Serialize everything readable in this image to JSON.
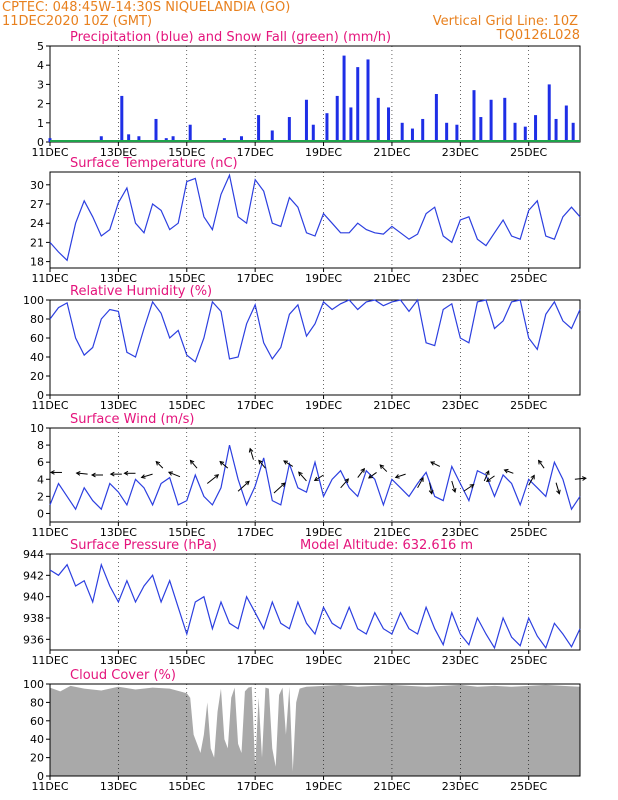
{
  "header": {
    "line1_left": "CPTEC:   048:45W-14:30S   NIQUELANDIA (GO)",
    "line2_left": "11DEC2020  10Z (GMT)",
    "line2_right": "Vertical Grid Line: 10Z",
    "line3_right": "TQ0126L028"
  },
  "x_axis": {
    "ticks": [
      "11DEC",
      "13DEC",
      "15DEC",
      "17DEC",
      "19DEC",
      "21DEC",
      "23DEC",
      "25DEC"
    ],
    "range_days": [
      0,
      15.5
    ]
  },
  "colors": {
    "series_line": "#2c3fe0",
    "precip": "#1e2ee6",
    "snow": "#1ea34a",
    "cloud": "#a9a9a9",
    "title": "#e4147c",
    "header": "#e8801e"
  },
  "chart_data": [
    {
      "id": "precip",
      "type": "bar",
      "title": "Precipitation (blue) and Snow Fall (green) (mm/h)",
      "ylim": [
        0,
        5
      ],
      "yticks": [
        "0",
        "1",
        "2",
        "3",
        "4",
        "5"
      ],
      "ytick_values": [
        0,
        1,
        2,
        3,
        4,
        5
      ],
      "series": [
        {
          "name": "Precipitation",
          "x": [
            0.0,
            0.5,
            1.5,
            2.1,
            2.3,
            2.6,
            3.1,
            3.4,
            3.6,
            4.1,
            4.6,
            5.1,
            5.6,
            6.1,
            6.5,
            7.0,
            7.5,
            7.7,
            8.1,
            8.4,
            8.6,
            8.8,
            9.0,
            9.3,
            9.6,
            9.9,
            10.3,
            10.6,
            10.9,
            11.3,
            11.6,
            11.9,
            12.4,
            12.6,
            12.9,
            13.3,
            13.6,
            13.9,
            14.2,
            14.6,
            14.8,
            15.1,
            15.3
          ],
          "values": [
            0.2,
            0.1,
            0.3,
            2.4,
            0.4,
            0.3,
            1.2,
            0.2,
            0.3,
            0.9,
            0.1,
            0.2,
            0.3,
            1.4,
            0.6,
            1.3,
            2.2,
            0.9,
            1.5,
            2.4,
            4.5,
            1.8,
            3.9,
            4.3,
            2.3,
            1.8,
            1.0,
            0.7,
            1.2,
            2.5,
            1.0,
            0.9,
            2.7,
            1.3,
            2.2,
            2.3,
            1.0,
            0.8,
            1.4,
            3.0,
            1.2,
            1.9,
            1.0
          ]
        },
        {
          "name": "Snow Fall",
          "x": [
            0,
            15.5
          ],
          "values": [
            0,
            0
          ]
        }
      ]
    },
    {
      "id": "temperature",
      "type": "line",
      "title": "Surface Temperature (nC)",
      "ylim": [
        17,
        32
      ],
      "yticks": [
        "18",
        "21",
        "24",
        "27",
        "30"
      ],
      "ytick_values": [
        18,
        21,
        24,
        27,
        30
      ],
      "x": [
        0,
        0.25,
        0.5,
        0.75,
        1,
        1.25,
        1.5,
        1.75,
        2,
        2.25,
        2.5,
        2.75,
        3,
        3.25,
        3.5,
        3.75,
        4,
        4.25,
        4.5,
        4.75,
        5,
        5.25,
        5.5,
        5.75,
        6,
        6.25,
        6.5,
        6.75,
        7,
        7.25,
        7.5,
        7.75,
        8,
        8.25,
        8.5,
        8.75,
        9,
        9.25,
        9.5,
        9.75,
        10,
        10.25,
        10.5,
        10.75,
        11,
        11.25,
        11.5,
        11.75,
        12,
        12.25,
        12.5,
        12.75,
        13,
        13.25,
        13.5,
        13.75,
        14,
        14.25,
        14.5,
        14.75,
        15,
        15.25,
        15.5
      ],
      "values": [
        21,
        19.5,
        18.2,
        24,
        27.5,
        25,
        22,
        23,
        27.2,
        29.5,
        24,
        22.5,
        27,
        26,
        23,
        24,
        30.5,
        31,
        25,
        23,
        28.5,
        31.5,
        25,
        24,
        30.8,
        29,
        24,
        23.5,
        28,
        26.5,
        22.5,
        22,
        25.5,
        24,
        22.5,
        22.5,
        24,
        23,
        22.5,
        22.3,
        23.5,
        22.5,
        21.5,
        22.3,
        25.5,
        26.5,
        22,
        21,
        24.5,
        25,
        21.5,
        20.5,
        22.5,
        24.5,
        22,
        21.5,
        26,
        27.5,
        22,
        21.5,
        25,
        26.5,
        25
      ]
    },
    {
      "id": "humidity",
      "type": "line",
      "title": "Relative Humidity (%)",
      "ylim": [
        0,
        100
      ],
      "yticks": [
        "0",
        "20",
        "40",
        "60",
        "80",
        "100"
      ],
      "ytick_values": [
        0,
        20,
        40,
        60,
        80,
        100
      ],
      "x": [
        0,
        0.25,
        0.5,
        0.75,
        1,
        1.25,
        1.5,
        1.75,
        2,
        2.25,
        2.5,
        2.75,
        3,
        3.25,
        3.5,
        3.75,
        4,
        4.25,
        4.5,
        4.75,
        5,
        5.25,
        5.5,
        5.75,
        6,
        6.25,
        6.5,
        6.75,
        7,
        7.25,
        7.5,
        7.75,
        8,
        8.25,
        8.5,
        8.75,
        9,
        9.25,
        9.5,
        9.75,
        10,
        10.25,
        10.5,
        10.75,
        11,
        11.25,
        11.5,
        11.75,
        12,
        12.25,
        12.5,
        12.75,
        13,
        13.25,
        13.5,
        13.75,
        14,
        14.25,
        14.5,
        14.75,
        15,
        15.25,
        15.5
      ],
      "values": [
        80,
        92,
        97,
        60,
        42,
        50,
        80,
        90,
        88,
        45,
        40,
        70,
        98,
        86,
        60,
        68,
        42,
        35,
        60,
        98,
        88,
        38,
        40,
        75,
        95,
        55,
        38,
        50,
        85,
        95,
        62,
        75,
        98,
        90,
        96,
        100,
        90,
        98,
        100,
        94,
        98,
        100,
        88,
        100,
        55,
        52,
        90,
        96,
        60,
        55,
        98,
        100,
        70,
        78,
        98,
        100,
        60,
        48,
        85,
        98,
        78,
        70,
        90
      ]
    },
    {
      "id": "wind",
      "type": "line",
      "title": "Surface Wind (m/s)",
      "ylim": [
        -1,
        10
      ],
      "yticks": [
        "0",
        "2",
        "4",
        "6",
        "8",
        "10"
      ],
      "ytick_values": [
        0,
        2,
        4,
        6,
        8,
        10
      ],
      "x": [
        0,
        0.25,
        0.5,
        0.75,
        1,
        1.25,
        1.5,
        1.75,
        2,
        2.25,
        2.5,
        2.75,
        3,
        3.25,
        3.5,
        3.75,
        4,
        4.25,
        4.5,
        4.75,
        5,
        5.25,
        5.5,
        5.75,
        6,
        6.25,
        6.5,
        6.75,
        7,
        7.25,
        7.5,
        7.75,
        8,
        8.25,
        8.5,
        8.75,
        9,
        9.25,
        9.5,
        9.75,
        10,
        10.25,
        10.5,
        10.75,
        11,
        11.25,
        11.5,
        11.75,
        12,
        12.25,
        12.5,
        12.75,
        13,
        13.25,
        13.5,
        13.75,
        14,
        14.25,
        14.5,
        14.75,
        15,
        15.25,
        15.5
      ],
      "values": [
        1,
        3.5,
        2,
        0.5,
        3,
        1.5,
        0.5,
        3.5,
        2.5,
        1,
        4,
        3,
        1,
        3.5,
        4.2,
        1,
        1.5,
        4.5,
        2,
        1,
        3,
        8,
        4,
        1,
        3.2,
        6.5,
        1.5,
        1,
        5.8,
        3,
        2.5,
        6,
        2,
        4,
        5,
        3,
        2,
        5,
        4,
        1,
        4,
        3,
        2,
        3.5,
        4.8,
        2,
        1.5,
        5.5,
        3.5,
        1.5,
        5,
        4.5,
        2,
        4.5,
        3.5,
        1,
        4,
        3,
        2,
        6,
        4,
        0.5,
        2
      ],
      "arrows": [
        {
          "x": 0.35,
          "y": 4.8,
          "dx": -1,
          "dy": 0
        },
        {
          "x": 1.1,
          "y": 4.6,
          "dx": -1,
          "dy": 0.1
        },
        {
          "x": 1.55,
          "y": 4.5,
          "dx": -1,
          "dy": 0
        },
        {
          "x": 2.1,
          "y": 4.6,
          "dx": -1,
          "dy": 0
        },
        {
          "x": 2.5,
          "y": 4.7,
          "dx": -1,
          "dy": 0
        },
        {
          "x": 3.0,
          "y": 4.6,
          "dx": -1,
          "dy": -0.3
        },
        {
          "x": 3.3,
          "y": 5.3,
          "dx": -0.6,
          "dy": 0.6
        },
        {
          "x": 3.8,
          "y": 4.3,
          "dx": -1,
          "dy": 0.4
        },
        {
          "x": 4.3,
          "y": 5.3,
          "dx": -0.6,
          "dy": 0.7
        },
        {
          "x": 4.6,
          "y": 3.5,
          "dx": 1,
          "dy": 0.8
        },
        {
          "x": 5.2,
          "y": 5.3,
          "dx": -0.7,
          "dy": 0.6
        },
        {
          "x": 5.5,
          "y": 2.6,
          "dx": 1,
          "dy": 0.9
        },
        {
          "x": 5.95,
          "y": 6.3,
          "dx": -0.3,
          "dy": 1
        },
        {
          "x": 6.3,
          "y": 5.3,
          "dx": -0.6,
          "dy": 0.7
        },
        {
          "x": 6.55,
          "y": 2.4,
          "dx": 1,
          "dy": 0.9
        },
        {
          "x": 7.1,
          "y": 5.5,
          "dx": -0.8,
          "dy": 0.5
        },
        {
          "x": 7.5,
          "y": 3.8,
          "dx": -0.7,
          "dy": 0.8
        },
        {
          "x": 8.0,
          "y": 4.5,
          "dx": -0.8,
          "dy": -0.5
        },
        {
          "x": 8.5,
          "y": 3.0,
          "dx": 0.7,
          "dy": 0.8
        },
        {
          "x": 9.0,
          "y": 4.2,
          "dx": 0.6,
          "dy": 0.8
        },
        {
          "x": 9.55,
          "y": 4.8,
          "dx": -0.7,
          "dy": -0.5
        },
        {
          "x": 9.85,
          "y": 4.9,
          "dx": -0.6,
          "dy": 0.6
        },
        {
          "x": 10.4,
          "y": 4.6,
          "dx": -0.9,
          "dy": -0.3
        },
        {
          "x": 10.75,
          "y": 3.0,
          "dx": 0.5,
          "dy": 0.9
        },
        {
          "x": 11.1,
          "y": 3.6,
          "dx": 0.2,
          "dy": -1
        },
        {
          "x": 11.4,
          "y": 5.5,
          "dx": -0.8,
          "dy": 0.4
        },
        {
          "x": 11.75,
          "y": 3.8,
          "dx": 0.3,
          "dy": -1
        },
        {
          "x": 12.1,
          "y": 2.6,
          "dx": 0.9,
          "dy": 0.6
        },
        {
          "x": 12.7,
          "y": 3.8,
          "dx": 0.4,
          "dy": 0.9
        },
        {
          "x": 13.0,
          "y": 4.4,
          "dx": -0.7,
          "dy": -0.5
        },
        {
          "x": 13.55,
          "y": 4.7,
          "dx": -0.8,
          "dy": 0.3
        },
        {
          "x": 14.0,
          "y": 3.3,
          "dx": 0.5,
          "dy": 0.9
        },
        {
          "x": 14.45,
          "y": 5.3,
          "dx": -0.5,
          "dy": 0.7
        },
        {
          "x": 14.8,
          "y": 3.6,
          "dx": 0.3,
          "dy": -1
        },
        {
          "x": 15.35,
          "y": 4.0,
          "dx": 1,
          "dy": 0.1
        }
      ]
    },
    {
      "id": "pressure",
      "type": "line",
      "title": "Surface Pressure (hPa)",
      "annotation": "Model Altitude: 632.616  m",
      "ylim": [
        935,
        944
      ],
      "yticks": [
        "936",
        "938",
        "940",
        "942",
        "944"
      ],
      "ytick_values": [
        936,
        938,
        940,
        942,
        944
      ],
      "x": [
        0,
        0.25,
        0.5,
        0.75,
        1,
        1.25,
        1.5,
        1.75,
        2,
        2.25,
        2.5,
        2.75,
        3,
        3.25,
        3.5,
        3.75,
        4,
        4.25,
        4.5,
        4.75,
        5,
        5.25,
        5.5,
        5.75,
        6,
        6.25,
        6.5,
        6.75,
        7,
        7.25,
        7.5,
        7.75,
        8,
        8.25,
        8.5,
        8.75,
        9,
        9.25,
        9.5,
        9.75,
        10,
        10.25,
        10.5,
        10.75,
        11,
        11.25,
        11.5,
        11.75,
        12,
        12.25,
        12.5,
        12.75,
        13,
        13.25,
        13.5,
        13.75,
        14,
        14.25,
        14.5,
        14.75,
        15,
        15.25,
        15.5
      ],
      "values": [
        942.5,
        942,
        943,
        941,
        941.5,
        939.5,
        943,
        941,
        939.5,
        941.5,
        939.5,
        941,
        942,
        939.5,
        941.5,
        939,
        936.5,
        939.5,
        940,
        937,
        939.5,
        937.5,
        937,
        940,
        938.5,
        937,
        939.5,
        937.5,
        937,
        939.5,
        937.5,
        936.5,
        939,
        937.5,
        937,
        939,
        937,
        936.5,
        938.5,
        937,
        936.5,
        938.5,
        937,
        936.5,
        939,
        937,
        935.5,
        938.5,
        936.5,
        935.5,
        938,
        936.5,
        935.2,
        938,
        936.2,
        935.4,
        938,
        936.3,
        935.2,
        937.5,
        936.5,
        935.3,
        937
      ]
    },
    {
      "id": "cloud",
      "type": "area",
      "title": "Cloud Cover (%)",
      "ylim": [
        0,
        100
      ],
      "yticks": [
        "0",
        "20",
        "40",
        "60",
        "80",
        "100"
      ],
      "ytick_values": [
        0,
        20,
        40,
        60,
        80,
        100
      ],
      "x": [
        0,
        0.3,
        0.6,
        1,
        1.5,
        2,
        2.5,
        3,
        3.5,
        3.8,
        4.0,
        4.1,
        4.2,
        4.3,
        4.4,
        4.5,
        4.6,
        4.7,
        4.8,
        4.9,
        5.0,
        5.1,
        5.2,
        5.3,
        5.4,
        5.5,
        5.6,
        5.7,
        5.8,
        5.9,
        6.0,
        6.1,
        6.2,
        6.3,
        6.4,
        6.5,
        6.6,
        6.7,
        6.8,
        6.9,
        7.0,
        7.1,
        7.2,
        7.3,
        7.4,
        7.5,
        8,
        8.5,
        9,
        9.5,
        10,
        10.5,
        11,
        11.5,
        12,
        12.5,
        13,
        13.5,
        14,
        14.5,
        15,
        15.5
      ],
      "values": [
        96,
        92,
        98,
        95,
        93,
        97,
        94,
        96,
        95,
        92,
        90,
        85,
        45,
        35,
        25,
        45,
        80,
        30,
        20,
        70,
        95,
        40,
        30,
        85,
        96,
        35,
        25,
        92,
        96,
        97,
        10,
        85,
        20,
        96,
        95,
        30,
        10,
        88,
        96,
        45,
        97,
        5,
        80,
        95,
        96,
        97,
        98,
        99,
        97,
        98,
        99,
        98,
        97,
        98,
        99,
        97,
        98,
        97,
        98,
        99,
        98,
        97
      ]
    }
  ]
}
